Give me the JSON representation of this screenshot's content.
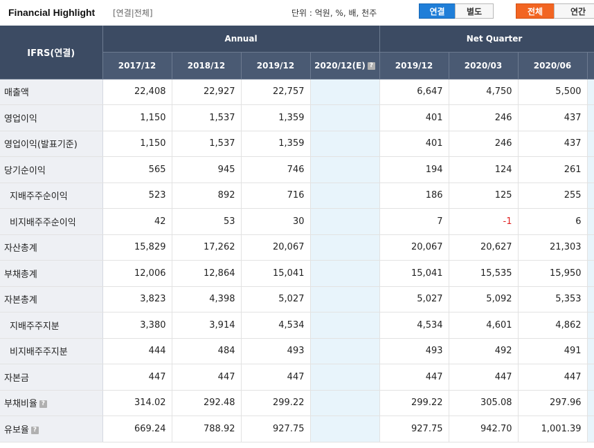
{
  "header": {
    "title": "Financial Highlight",
    "subtitle": "[연결|전체]",
    "unit_label": "단위 : 억원, %, 배, 천주",
    "toggle_consolidation": [
      "연결",
      "별도"
    ],
    "toggle_period": [
      "전체",
      "연간"
    ]
  },
  "table": {
    "ifrs_label": "IFRS(연결)",
    "group_annual": "Annual",
    "group_quarter": "Net Quarter",
    "columns": [
      "2017/12",
      "2018/12",
      "2019/12",
      "2020/12(E)",
      "2019/12",
      "2020/03",
      "2020/06"
    ],
    "rows": [
      {
        "label": "매출액",
        "values": [
          "22,408",
          "22,927",
          "22,757",
          "",
          "6,647",
          "4,750",
          "5,500"
        ]
      },
      {
        "label": "영업이익",
        "values": [
          "1,150",
          "1,537",
          "1,359",
          "",
          "401",
          "246",
          "437"
        ]
      },
      {
        "label": "영업이익(발표기준)",
        "values": [
          "1,150",
          "1,537",
          "1,359",
          "",
          "401",
          "246",
          "437"
        ]
      },
      {
        "label": "당기순이익",
        "values": [
          "565",
          "945",
          "746",
          "",
          "194",
          "124",
          "261"
        ]
      },
      {
        "label": "지배주주순이익",
        "values": [
          "523",
          "892",
          "716",
          "",
          "186",
          "125",
          "255"
        ]
      },
      {
        "label": "비지배주주순이익",
        "values": [
          "42",
          "53",
          "30",
          "",
          "7",
          "-1",
          "6"
        ]
      },
      {
        "label": "자산총계",
        "values": [
          "15,829",
          "17,262",
          "20,067",
          "",
          "20,067",
          "20,627",
          "21,303"
        ]
      },
      {
        "label": "부채총계",
        "values": [
          "12,006",
          "12,864",
          "15,041",
          "",
          "15,041",
          "15,535",
          "15,950"
        ]
      },
      {
        "label": "자본총계",
        "values": [
          "3,823",
          "4,398",
          "5,027",
          "",
          "5,027",
          "5,092",
          "5,353"
        ]
      },
      {
        "label": "지배주주지분",
        "values": [
          "3,380",
          "3,914",
          "4,534",
          "",
          "4,534",
          "4,601",
          "4,862"
        ]
      },
      {
        "label": "비지배주주지분",
        "values": [
          "444",
          "484",
          "493",
          "",
          "493",
          "492",
          "491"
        ]
      },
      {
        "label": "자본금",
        "values": [
          "447",
          "447",
          "447",
          "",
          "447",
          "447",
          "447"
        ]
      },
      {
        "label": "부채비율",
        "values": [
          "314.02",
          "292.48",
          "299.22",
          "",
          "299.22",
          "305.08",
          "297.96"
        ]
      },
      {
        "label": "유보율",
        "values": [
          "669.24",
          "788.92",
          "927.75",
          "",
          "927.75",
          "942.70",
          "1,001.39"
        ]
      }
    ]
  }
}
